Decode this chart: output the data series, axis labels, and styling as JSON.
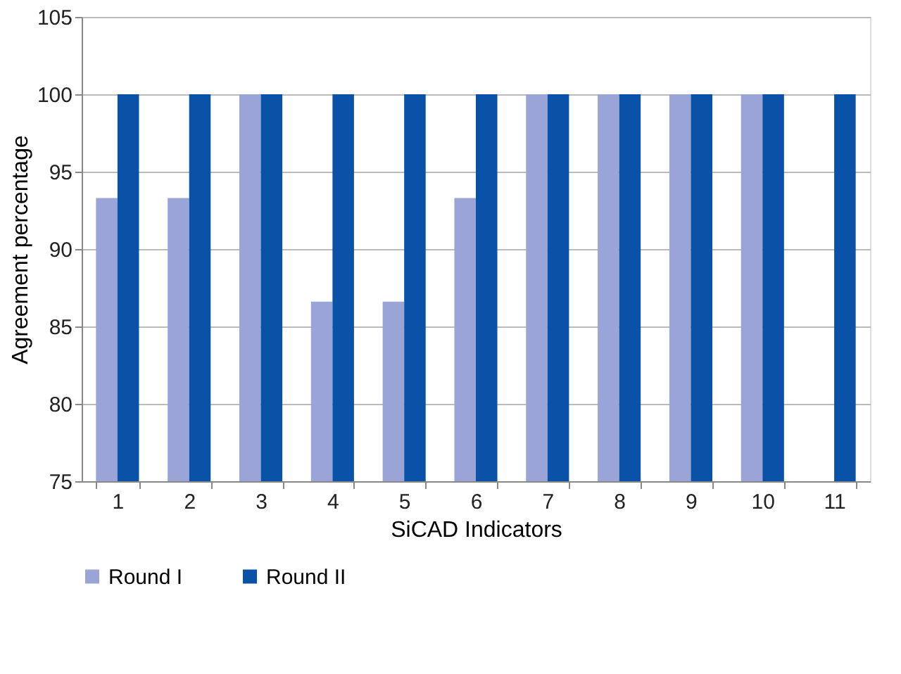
{
  "chart_data": {
    "type": "bar",
    "xlabel": "SiCAD Indicators",
    "ylabel": "Agreement percentage",
    "categories": [
      "1",
      "2",
      "3",
      "4",
      "5",
      "6",
      "7",
      "8",
      "9",
      "10",
      "11"
    ],
    "series": [
      {
        "name": "Round I",
        "color": "#9aa4d6",
        "values": [
          93.3,
          93.3,
          100,
          86.6,
          86.6,
          93.3,
          100,
          100,
          100,
          100,
          null
        ]
      },
      {
        "name": "Round II",
        "color": "#0a52a8",
        "values": [
          100,
          100,
          100,
          100,
          100,
          100,
          100,
          100,
          100,
          100,
          100
        ]
      }
    ],
    "ylim": [
      75,
      105
    ],
    "yticks": [
      75,
      80,
      85,
      90,
      95,
      100,
      105
    ],
    "grid": "y",
    "legend": "bottom"
  }
}
